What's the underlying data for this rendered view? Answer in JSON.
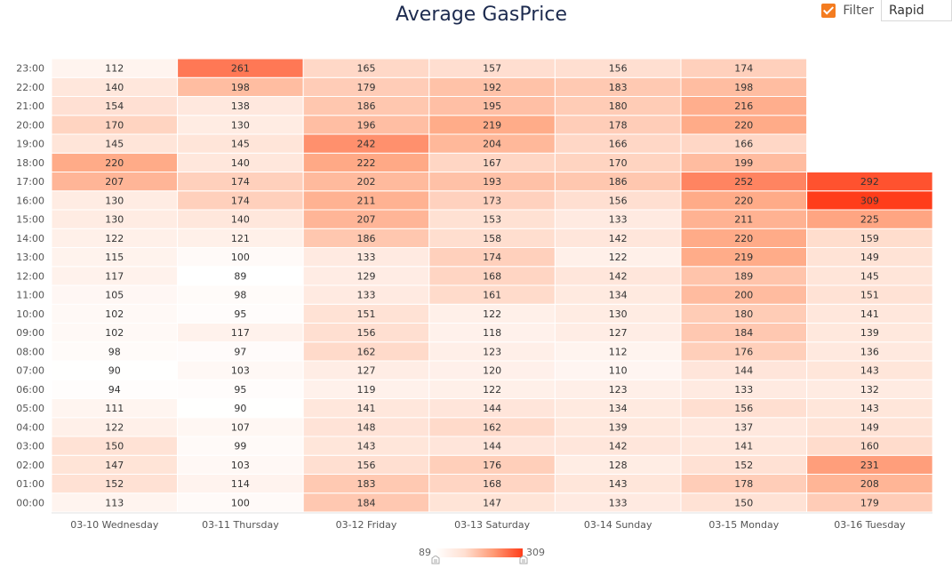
{
  "filter": {
    "checked": true,
    "label": "Filter",
    "value": "Rapid"
  },
  "legend": {
    "min_label": "89",
    "max_label": "309"
  },
  "chart_data": {
    "type": "heatmap",
    "title": "Average GasPrice",
    "x_categories": [
      "03-10 Wednesday",
      "03-11 Thursday",
      "03-12 Friday",
      "03-13 Saturday",
      "03-14 Sunday",
      "03-15 Monday",
      "03-16 Tuesday"
    ],
    "y_categories": [
      "00:00",
      "01:00",
      "02:00",
      "03:00",
      "04:00",
      "05:00",
      "06:00",
      "07:00",
      "08:00",
      "09:00",
      "10:00",
      "11:00",
      "12:00",
      "13:00",
      "14:00",
      "15:00",
      "16:00",
      "17:00",
      "18:00",
      "19:00",
      "20:00",
      "21:00",
      "22:00",
      "23:00"
    ],
    "value_range": [
      89,
      309
    ],
    "color_range": [
      "#ffffff",
      "#ff3d1a"
    ],
    "values": [
      [
        113,
        152,
        147,
        150,
        122,
        111,
        94,
        90,
        98,
        102,
        102,
        105,
        117,
        115,
        122,
        130,
        130,
        207,
        220,
        145,
        170,
        154,
        140,
        112
      ],
      [
        100,
        114,
        103,
        99,
        107,
        90,
        95,
        103,
        97,
        117,
        95,
        98,
        89,
        100,
        121,
        140,
        174,
        174,
        140,
        145,
        130,
        138,
        198,
        261
      ],
      [
        184,
        183,
        156,
        143,
        148,
        141,
        119,
        127,
        162,
        156,
        151,
        133,
        129,
        133,
        186,
        207,
        211,
        202,
        222,
        242,
        196,
        186,
        179,
        165
      ],
      [
        147,
        168,
        176,
        144,
        162,
        144,
        122,
        120,
        123,
        118,
        122,
        161,
        168,
        174,
        158,
        153,
        173,
        193,
        167,
        204,
        219,
        195,
        192,
        157
      ],
      [
        133,
        143,
        128,
        142,
        139,
        134,
        123,
        110,
        112,
        127,
        130,
        134,
        142,
        122,
        142,
        133,
        156,
        186,
        170,
        166,
        178,
        180,
        183,
        156
      ],
      [
        150,
        178,
        152,
        141,
        137,
        156,
        133,
        144,
        176,
        184,
        180,
        200,
        189,
        219,
        220,
        211,
        220,
        252,
        199,
        166,
        220,
        216,
        198,
        174
      ],
      [
        179,
        208,
        231,
        160,
        149,
        143,
        132,
        143,
        136,
        139,
        141,
        151,
        145,
        149,
        159,
        225,
        309,
        292,
        null,
        null,
        null,
        null,
        null,
        null
      ]
    ]
  }
}
